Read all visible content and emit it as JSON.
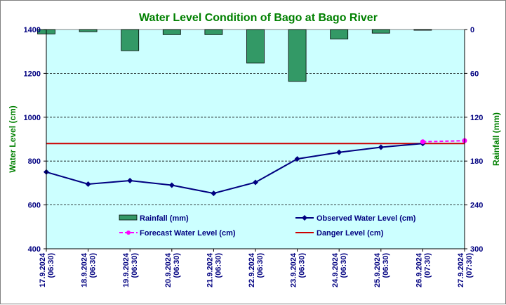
{
  "chart_data": {
    "type": "bar+line",
    "title": "Water Level Condition of Bago at Bago River",
    "ylabel": "Water Level (cm)",
    "y2label": "Rainfall (mm)",
    "ylim": [
      400,
      1400
    ],
    "yticks": [
      400,
      600,
      800,
      1000,
      1200,
      1400
    ],
    "y2lim": [
      0,
      300
    ],
    "y2reversed": true,
    "y2ticks": [
      0,
      60,
      120,
      180,
      240,
      300
    ],
    "categories": [
      {
        "date": "17.9.2024",
        "time": "(06:30)"
      },
      {
        "date": "18.9.2024",
        "time": "(06:30)"
      },
      {
        "date": "19.9.2024",
        "time": "(06:30)"
      },
      {
        "date": "20.9.2024",
        "time": "(06:30)"
      },
      {
        "date": "21.9.2024",
        "time": "(06:30)"
      },
      {
        "date": "22.9.2024",
        "time": "(06:30)"
      },
      {
        "date": "23.9.2024",
        "time": "(06:30)"
      },
      {
        "date": "24.9.2024",
        "time": "(06:30)"
      },
      {
        "date": "25.9.2024",
        "time": "(06:30)"
      },
      {
        "date": "26.9.2024",
        "time": "(07:30)"
      },
      {
        "date": "27.9.2024",
        "time": "(07:30)"
      }
    ],
    "series": [
      {
        "name": "Rainfall (mm)",
        "kind": "bar",
        "axis": "right",
        "color": "#339966",
        "values": [
          6,
          3,
          29,
          7,
          7,
          46,
          71,
          13,
          5,
          1,
          null
        ]
      },
      {
        "name": "Observed Water Level (cm)",
        "kind": "line",
        "axis": "left",
        "color": "#000080",
        "values": [
          750,
          695,
          711,
          690,
          653,
          703,
          810,
          840,
          863,
          880,
          null
        ]
      },
      {
        "name": "Forecast Water Level (cm)",
        "kind": "dashed-line",
        "axis": "left",
        "color": "#ff00ff",
        "values": [
          null,
          null,
          null,
          null,
          null,
          null,
          null,
          null,
          null,
          888,
          893
        ]
      },
      {
        "name": "Danger Level (cm)",
        "kind": "hline",
        "axis": "left",
        "color": "#cc0000",
        "value": 880
      }
    ],
    "plot_background": "#ccffff",
    "grid": "horizontal dashed",
    "legend": "inside-bottom"
  }
}
